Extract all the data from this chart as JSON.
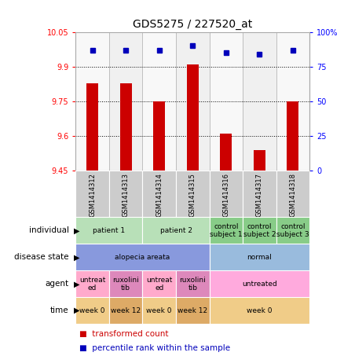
{
  "title": "GDS5275 / 227520_at",
  "samples": [
    "GSM1414312",
    "GSM1414313",
    "GSM1414314",
    "GSM1414315",
    "GSM1414316",
    "GSM1414317",
    "GSM1414318"
  ],
  "bar_values": [
    9.83,
    9.83,
    9.75,
    9.91,
    9.61,
    9.54,
    9.75
  ],
  "percentile_values": [
    87,
    87,
    87,
    90,
    85,
    84,
    87
  ],
  "ylim_left": [
    9.45,
    10.05
  ],
  "ylim_right": [
    0,
    100
  ],
  "yticks_left": [
    9.45,
    9.6,
    9.75,
    9.9,
    10.05
  ],
  "yticks_right": [
    0,
    25,
    50,
    75,
    100
  ],
  "ytick_labels_right": [
    "0",
    "25",
    "50",
    "75",
    "100%"
  ],
  "bar_color": "#cc0000",
  "dot_color": "#0000bb",
  "individual_groups": [
    {
      "label": "patient 1",
      "span": [
        0,
        1
      ],
      "color": "#b8e0b8"
    },
    {
      "label": "patient 2",
      "span": [
        2,
        3
      ],
      "color": "#b8e0b8"
    },
    {
      "label": "control\nsubject 1",
      "span": [
        4,
        4
      ],
      "color": "#88cc88"
    },
    {
      "label": "control\nsubject 2",
      "span": [
        5,
        5
      ],
      "color": "#88cc88"
    },
    {
      "label": "control\nsubject 3",
      "span": [
        6,
        6
      ],
      "color": "#88cc88"
    }
  ],
  "disease_groups": [
    {
      "label": "alopecia areata",
      "span": [
        0,
        3
      ],
      "color": "#8899dd"
    },
    {
      "label": "normal",
      "span": [
        4,
        6
      ],
      "color": "#99bbdd"
    }
  ],
  "agent_groups": [
    {
      "label": "untreat\ned",
      "span": [
        0,
        0
      ],
      "color": "#ffaacc"
    },
    {
      "label": "ruxolini\ntib",
      "span": [
        1,
        1
      ],
      "color": "#dd88bb"
    },
    {
      "label": "untreat\ned",
      "span": [
        2,
        2
      ],
      "color": "#ffaacc"
    },
    {
      "label": "ruxolini\ntib",
      "span": [
        3,
        3
      ],
      "color": "#dd88bb"
    },
    {
      "label": "untreated",
      "span": [
        4,
        6
      ],
      "color": "#ffaadd"
    }
  ],
  "time_groups": [
    {
      "label": "week 0",
      "span": [
        0,
        0
      ],
      "color": "#f0cc88"
    },
    {
      "label": "week 12",
      "span": [
        1,
        1
      ],
      "color": "#ddaa66"
    },
    {
      "label": "week 0",
      "span": [
        2,
        2
      ],
      "color": "#f0cc88"
    },
    {
      "label": "week 12",
      "span": [
        3,
        3
      ],
      "color": "#ddaa66"
    },
    {
      "label": "week 0",
      "span": [
        4,
        6
      ],
      "color": "#f0cc88"
    }
  ],
  "row_labels": [
    "individual",
    "disease state",
    "agent",
    "time"
  ],
  "n_samples": 7
}
